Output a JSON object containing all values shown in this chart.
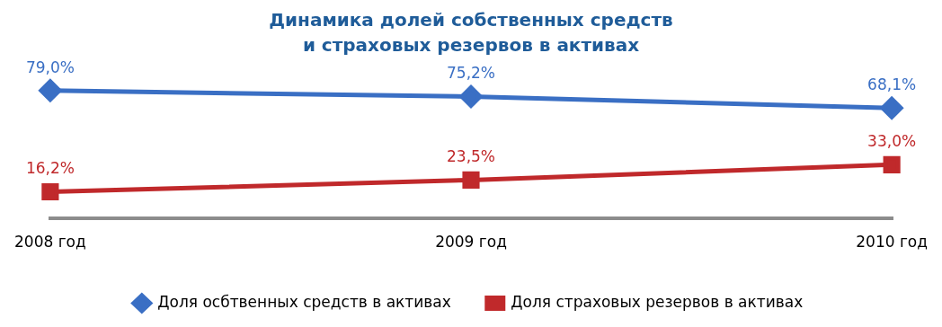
{
  "chart_data": {
    "type": "line",
    "title": "Динамика долей собственных средств и страховых резервов в активах",
    "categories": [
      "2008 год",
      "2009 год",
      "2010 год"
    ],
    "series": [
      {
        "name": "Доля осбтвенных средств в активах",
        "color": "#3a6fc4",
        "values": [
          79.0,
          75.2,
          68.1
        ],
        "value_labels": [
          "79,0%",
          "75,2%",
          "68,1%"
        ],
        "marker": "diamond"
      },
      {
        "name": "Доля страховых резервов в активах",
        "color": "#c0292b",
        "values": [
          16.2,
          23.5,
          33.0
        ],
        "value_labels": [
          "16,2%",
          "23,5%",
          "33,0%"
        ],
        "marker": "square"
      }
    ],
    "legend": "bottom",
    "grid": false,
    "line_style": "solid"
  }
}
